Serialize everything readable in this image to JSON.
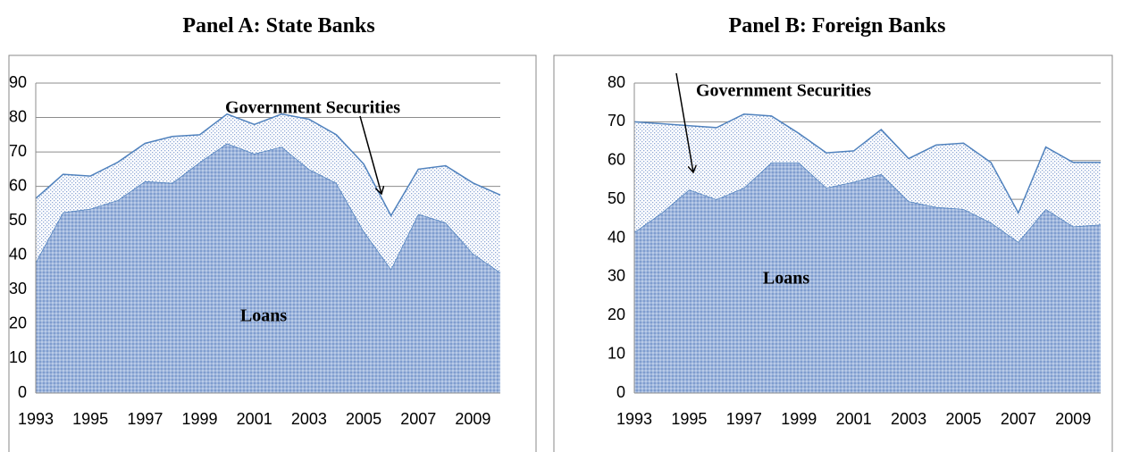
{
  "chart_data": [
    {
      "type": "area",
      "title": "Panel A: State Banks",
      "categories": [
        "1993",
        null,
        "1995",
        null,
        "1997",
        null,
        "1999",
        null,
        "2001",
        null,
        "2003",
        null,
        "2005",
        null,
        "2007",
        null,
        "2009",
        null
      ],
      "series": [
        {
          "name": "Loans",
          "color": "#4f81bd",
          "values": [
            38,
            52.5,
            53.5,
            56,
            61.5,
            61,
            67,
            72.5,
            69.5,
            71.5,
            65,
            61,
            47,
            36,
            52,
            49.5,
            40.5,
            35
          ]
        },
        {
          "name": "Government Securities",
          "color": "#4f81bd",
          "values": [
            18.5,
            11,
            9.5,
            11,
            11,
            13.5,
            8,
            8.5,
            8.5,
            9.5,
            14.5,
            14,
            19.5,
            15.5,
            13,
            16.5,
            20.5,
            22.5
          ]
        }
      ],
      "stacked": true,
      "ylim": [
        0,
        90
      ],
      "yticks": [
        0,
        10,
        20,
        30,
        40,
        50,
        60,
        70,
        80,
        90
      ],
      "grid": true
    },
    {
      "type": "area",
      "title": "Panel B: Foreign Banks",
      "categories": [
        "1993",
        null,
        "1995",
        null,
        "1997",
        null,
        "1999",
        null,
        "2001",
        null,
        "2003",
        null,
        "2005",
        null,
        "2007",
        null,
        "2009",
        null
      ],
      "series": [
        {
          "name": "Loans",
          "color": "#4f81bd",
          "values": [
            41.5,
            46.5,
            52.5,
            50,
            53,
            59.5,
            59.5,
            53,
            54.5,
            56.5,
            49.5,
            48,
            47.5,
            44,
            39,
            47.5,
            43,
            43.5
          ]
        },
        {
          "name": "Government Securities",
          "color": "#4f81bd",
          "values": [
            28.5,
            23,
            16.5,
            18.5,
            19,
            12,
            7.5,
            9,
            8,
            11.5,
            11,
            16,
            17,
            15.5,
            7.5,
            16,
            16.5,
            16
          ]
        }
      ],
      "stacked": true,
      "ylim": [
        0,
        80
      ],
      "yticks": [
        0,
        10,
        20,
        30,
        40,
        50,
        60,
        70,
        80
      ],
      "grid": true
    }
  ]
}
